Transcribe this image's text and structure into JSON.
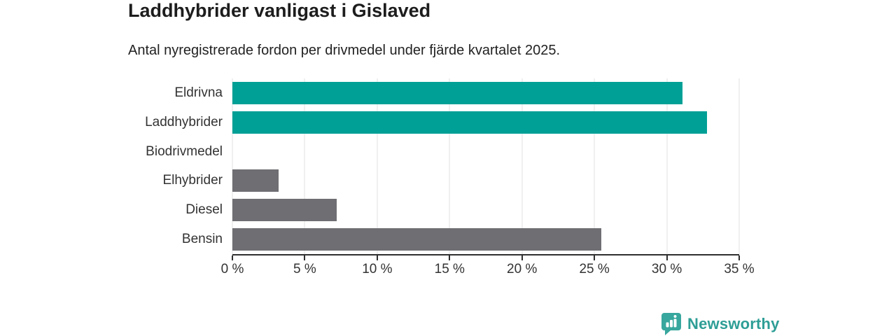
{
  "header": {
    "title": "Laddhybrider vanligast i Gislaved",
    "subtitle": "Antal nyregistrerade fordon per drivmedel under fjärde kvartalet 2025."
  },
  "chart_data": {
    "type": "bar",
    "orientation": "horizontal",
    "title": "Laddhybrider vanligast i Gislaved",
    "subtitle": "Antal nyregistrerade fordon per drivmedel under fjärde kvartalet 2025.",
    "categories": [
      "Eldrivna",
      "Laddhybrider",
      "Biodrivmedel",
      "Elhybrider",
      "Diesel",
      "Bensin"
    ],
    "values": [
      31.1,
      32.8,
      0,
      3.2,
      7.2,
      25.5
    ],
    "unit": "%",
    "xlabel": "",
    "ylabel": "",
    "xlim": [
      0,
      35
    ],
    "x_ticks": [
      0,
      5,
      10,
      15,
      20,
      25,
      30,
      35
    ],
    "x_tick_labels": [
      "0 %",
      "5 %",
      "10 %",
      "15 %",
      "20 %",
      "25 %",
      "30 %",
      "35 %"
    ],
    "bar_colors": [
      "#00a096",
      "#00a096",
      "#6e6e73",
      "#6e6e73",
      "#6e6e73",
      "#6e6e73"
    ],
    "grid": true,
    "legend": "none"
  },
  "colors": {
    "accent_teal": "#00a096",
    "bar_gray": "#6e6e73",
    "gridline": "#e0e0e0",
    "axis": "#2f2f2f",
    "text_dark": "#1d1d1d",
    "text_label": "#333333",
    "logo_icon_teal": "#38a79d",
    "logo_text_teal": "#2e9e96"
  },
  "logo": {
    "text": "Newsworthy",
    "icon": "bar-chart-speech-bubble-icon"
  }
}
